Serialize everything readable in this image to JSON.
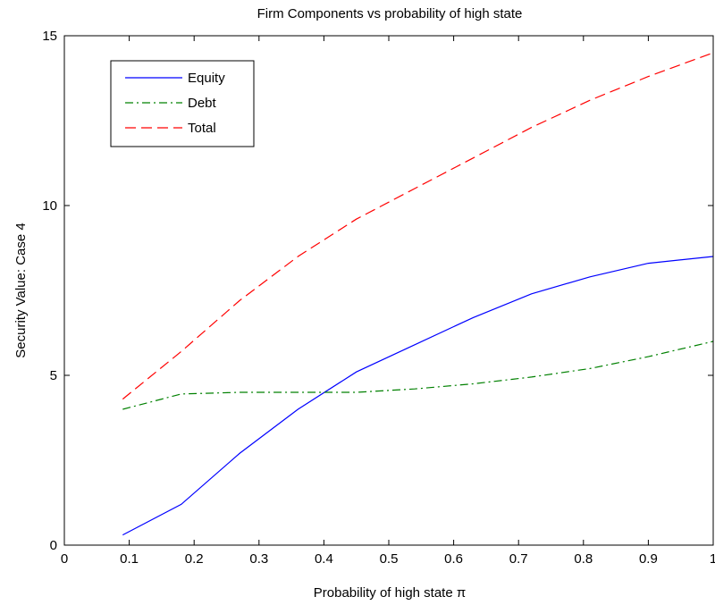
{
  "chart_data": {
    "type": "line",
    "title": "Firm Components vs probability of high state",
    "xlabel": "Probability of high state π",
    "ylabel": "Security Value: Case 4",
    "xlim": [
      0,
      1
    ],
    "ylim": [
      0,
      15
    ],
    "xticks": [
      0,
      0.1,
      0.2,
      0.3,
      0.4,
      0.5,
      0.6,
      0.7,
      0.8,
      0.9,
      1
    ],
    "xtick_labels": [
      "0",
      "0.1",
      "0.2",
      "0.3",
      "0.4",
      "0.5",
      "0.6",
      "0.7",
      "0.8",
      "0.9",
      "1"
    ],
    "yticks": [
      0,
      5,
      10,
      15
    ],
    "ytick_labels": [
      "0",
      "5",
      "10",
      "15"
    ],
    "grid": false,
    "legend_position": "top-left",
    "series": [
      {
        "name": "Equity",
        "color": "#0000ff",
        "style": "solid",
        "x": [
          0.09,
          0.18,
          0.27,
          0.36,
          0.45,
          0.54,
          0.63,
          0.72,
          0.81,
          0.9,
          1.0
        ],
        "y": [
          0.3,
          1.2,
          2.7,
          4.0,
          5.1,
          5.9,
          6.7,
          7.4,
          7.9,
          8.3,
          8.5
        ]
      },
      {
        "name": "Debt",
        "color": "#008000",
        "style": "dashdot",
        "x": [
          0.09,
          0.18,
          0.27,
          0.36,
          0.45,
          0.54,
          0.63,
          0.72,
          0.81,
          0.9,
          1.0
        ],
        "y": [
          4.0,
          4.45,
          4.5,
          4.5,
          4.5,
          4.6,
          4.75,
          4.95,
          5.2,
          5.55,
          6.0
        ]
      },
      {
        "name": "Total",
        "color": "#ff0000",
        "style": "dashed",
        "x": [
          0.09,
          0.18,
          0.27,
          0.36,
          0.45,
          0.54,
          0.63,
          0.72,
          0.81,
          0.9,
          1.0
        ],
        "y": [
          4.3,
          5.7,
          7.2,
          8.5,
          9.6,
          10.5,
          11.4,
          12.3,
          13.1,
          13.8,
          14.5
        ]
      }
    ]
  }
}
